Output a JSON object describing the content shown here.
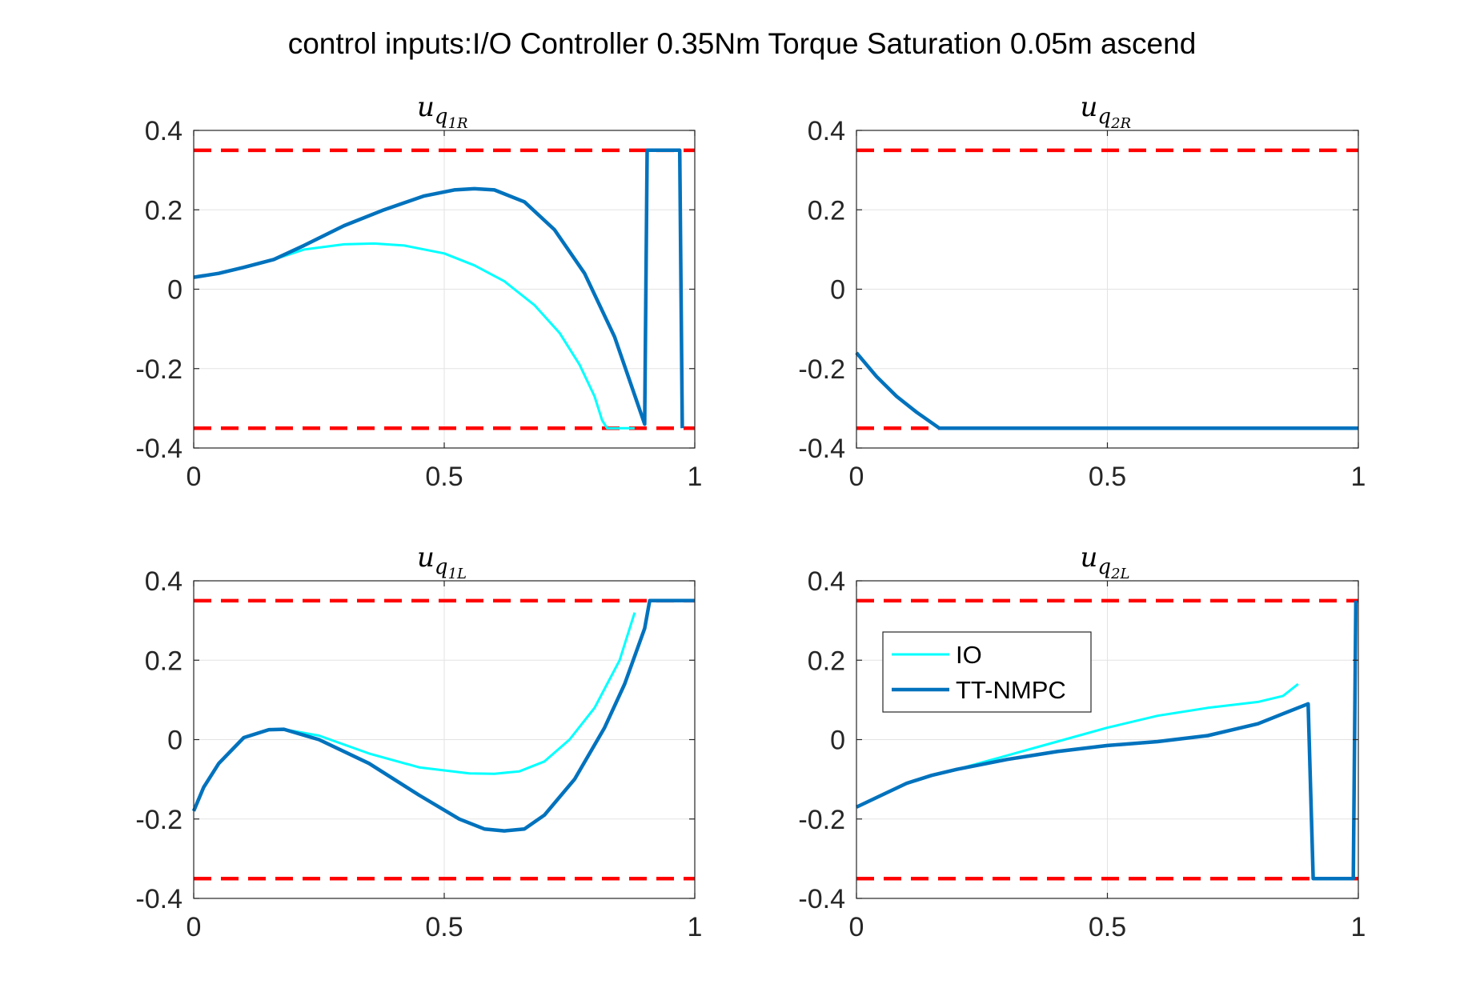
{
  "title": "control inputs:I/O Controller 0.35Nm Torque Saturation 0.05m ascend",
  "colors": {
    "io": "#00FFFF",
    "ttnmpc": "#0072BD",
    "limit": "#FF0000",
    "grid": "#E3E3E3",
    "axis": "#262626"
  },
  "legend": {
    "entries": [
      {
        "name": "IO",
        "color": "#00FFFF"
      },
      {
        "name": "TT-NMPC",
        "color": "#0072BD"
      }
    ]
  },
  "chart_data": [
    {
      "type": "line",
      "title": {
        "base": "u",
        "sub1": "q",
        "sub2": "1R"
      },
      "xlim": [
        0,
        1
      ],
      "ylim": [
        -0.4,
        0.4
      ],
      "xticks": [
        "0",
        "0.5",
        "1"
      ],
      "yticks": [
        "-0.4",
        "-0.2",
        "0",
        "0.2",
        "0.4"
      ],
      "grid": true,
      "limits": [
        0.35,
        -0.35
      ],
      "series": [
        {
          "name": "IO",
          "x": [
            0,
            0.05,
            0.1,
            0.16,
            0.22,
            0.3,
            0.36,
            0.42,
            0.5,
            0.56,
            0.62,
            0.68,
            0.73,
            0.77,
            0.8,
            0.815,
            0.825,
            0.88
          ],
          "y": [
            0.03,
            0.04,
            0.055,
            0.075,
            0.1,
            0.113,
            0.115,
            0.11,
            0.09,
            0.06,
            0.02,
            -0.04,
            -0.11,
            -0.19,
            -0.27,
            -0.33,
            -0.35,
            -0.35
          ]
        },
        {
          "name": "TT-NMPC",
          "x": [
            0,
            0.05,
            0.1,
            0.16,
            0.22,
            0.3,
            0.38,
            0.46,
            0.52,
            0.56,
            0.6,
            0.66,
            0.72,
            0.78,
            0.84,
            0.9,
            0.905,
            0.97,
            0.975
          ],
          "y": [
            0.03,
            0.04,
            0.055,
            0.075,
            0.11,
            0.16,
            0.2,
            0.235,
            0.25,
            0.253,
            0.25,
            0.22,
            0.15,
            0.04,
            -0.12,
            -0.34,
            0.35,
            0.35,
            -0.35
          ]
        }
      ]
    },
    {
      "type": "line",
      "title": {
        "base": "u",
        "sub1": "q",
        "sub2": "2R"
      },
      "xlim": [
        0,
        1
      ],
      "ylim": [
        -0.4,
        0.4
      ],
      "xticks": [
        "0",
        "0.5",
        "1"
      ],
      "yticks": [
        "-0.4",
        "-0.2",
        "0",
        "0.2",
        "0.4"
      ],
      "grid": true,
      "limits": [
        0.35,
        -0.35
      ],
      "series": [
        {
          "name": "IO",
          "x": [
            0,
            0.04,
            0.08,
            0.12,
            0.165,
            1.0
          ],
          "y": [
            -0.16,
            -0.22,
            -0.27,
            -0.31,
            -0.35,
            -0.35
          ]
        },
        {
          "name": "TT-NMPC",
          "x": [
            0,
            0.04,
            0.08,
            0.12,
            0.165,
            1.0
          ],
          "y": [
            -0.16,
            -0.22,
            -0.27,
            -0.31,
            -0.35,
            -0.35
          ]
        }
      ]
    },
    {
      "type": "line",
      "title": {
        "base": "u",
        "sub1": "q",
        "sub2": "1L"
      },
      "xlim": [
        0,
        1
      ],
      "ylim": [
        -0.4,
        0.4
      ],
      "xticks": [
        "0",
        "0.5",
        "1"
      ],
      "yticks": [
        "-0.4",
        "-0.2",
        "0",
        "0.2",
        "0.4"
      ],
      "grid": true,
      "limits": [
        0.35,
        -0.35
      ],
      "series": [
        {
          "name": "IO",
          "x": [
            0,
            0.02,
            0.05,
            0.1,
            0.15,
            0.18,
            0.25,
            0.35,
            0.45,
            0.55,
            0.6,
            0.65,
            0.7,
            0.75,
            0.8,
            0.85,
            0.88
          ],
          "y": [
            -0.18,
            -0.12,
            -0.06,
            0.005,
            0.025,
            0.026,
            0.01,
            -0.035,
            -0.07,
            -0.085,
            -0.086,
            -0.08,
            -0.055,
            0.0,
            0.08,
            0.2,
            0.32
          ]
        },
        {
          "name": "TT-NMPC",
          "x": [
            0,
            0.02,
            0.05,
            0.1,
            0.15,
            0.18,
            0.25,
            0.35,
            0.45,
            0.53,
            0.58,
            0.62,
            0.66,
            0.7,
            0.76,
            0.82,
            0.86,
            0.9,
            0.91,
            1.0
          ],
          "y": [
            -0.18,
            -0.12,
            -0.06,
            0.005,
            0.025,
            0.026,
            0.0,
            -0.06,
            -0.14,
            -0.2,
            -0.225,
            -0.23,
            -0.225,
            -0.19,
            -0.1,
            0.03,
            0.14,
            0.28,
            0.35,
            0.35
          ]
        }
      ]
    },
    {
      "type": "line",
      "title": {
        "base": "u",
        "sub1": "q",
        "sub2": "2L"
      },
      "xlim": [
        0,
        1
      ],
      "ylim": [
        -0.4,
        0.4
      ],
      "xticks": [
        "0",
        "0.5",
        "1"
      ],
      "yticks": [
        "-0.4",
        "-0.2",
        "0",
        "0.2",
        "0.4"
      ],
      "grid": true,
      "limits": [
        0.35,
        -0.35
      ],
      "legend_location": "north-west",
      "series": [
        {
          "name": "IO",
          "x": [
            0,
            0.05,
            0.1,
            0.15,
            0.2,
            0.3,
            0.4,
            0.5,
            0.6,
            0.7,
            0.8,
            0.85,
            0.88
          ],
          "y": [
            -0.17,
            -0.14,
            -0.11,
            -0.09,
            -0.075,
            -0.04,
            -0.005,
            0.03,
            0.06,
            0.08,
            0.095,
            0.11,
            0.14
          ]
        },
        {
          "name": "TT-NMPC",
          "x": [
            0,
            0.05,
            0.1,
            0.15,
            0.2,
            0.3,
            0.4,
            0.5,
            0.6,
            0.7,
            0.8,
            0.85,
            0.9,
            0.91,
            0.99,
            0.995
          ],
          "y": [
            -0.17,
            -0.14,
            -0.11,
            -0.09,
            -0.075,
            -0.05,
            -0.03,
            -0.015,
            -0.005,
            0.01,
            0.04,
            0.065,
            0.09,
            -0.35,
            -0.35,
            0.35
          ]
        }
      ]
    }
  ]
}
